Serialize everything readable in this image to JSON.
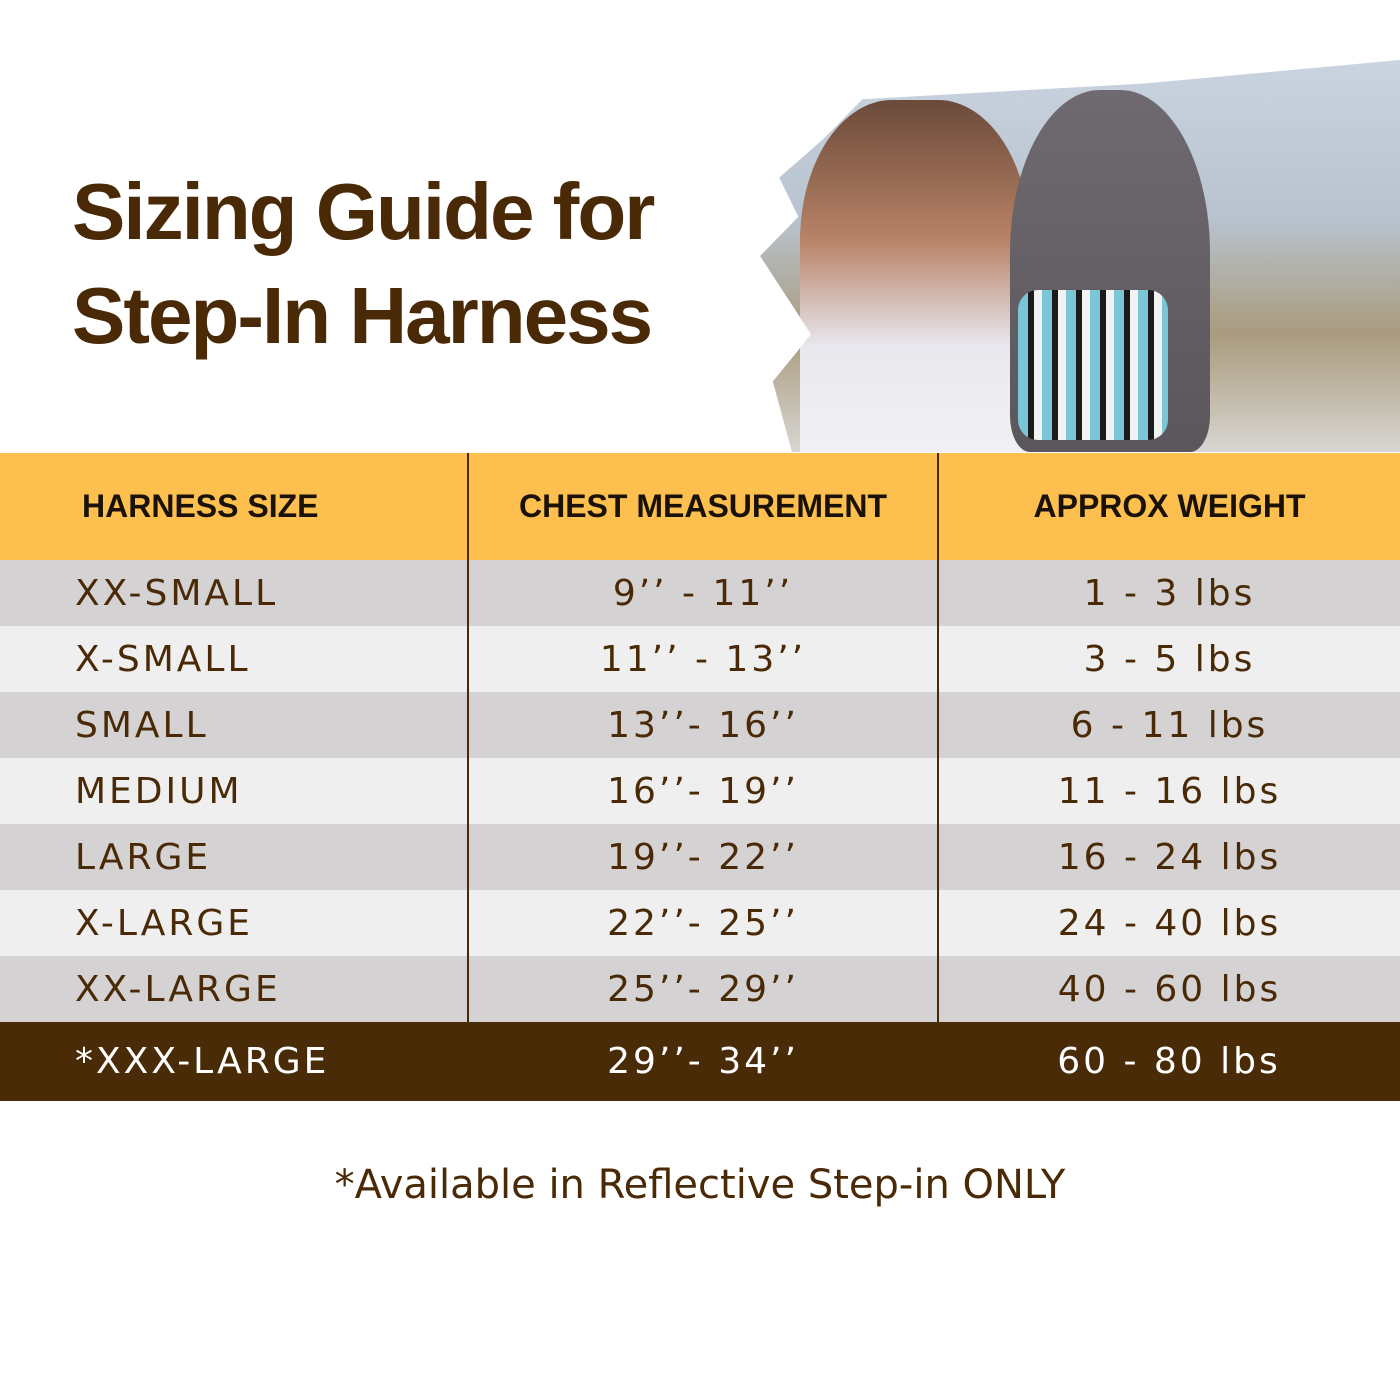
{
  "title": {
    "line1": "Sizing Guide for",
    "line2": "Step-In Harness"
  },
  "table": {
    "headers": [
      "HARNESS SIZE",
      "CHEST MEASUREMENT",
      "APPROX WEIGHT"
    ],
    "rows": [
      [
        "XX-SMALL",
        "9’’ -  11’’",
        "1 - 3 lbs"
      ],
      [
        "X-SMALL",
        "11’’ - 13’’",
        "3 - 5 lbs"
      ],
      [
        "SMALL",
        "13’’- 16’’",
        "6 - 11 lbs"
      ],
      [
        "MEDIUM",
        "16’’- 19’’",
        "11 - 16 lbs"
      ],
      [
        "LARGE",
        "19’’- 22’’",
        "16 - 24 lbs"
      ],
      [
        "X-LARGE",
        "22’’- 25’’",
        "24 - 40 lbs"
      ],
      [
        "XX-LARGE",
        "25’’- 29’’",
        "40 - 60 lbs"
      ],
      [
        "*XXX-LARGE",
        "29’’- 34’’",
        "60 - 80 lbs"
      ]
    ]
  },
  "footnote": "*Available in Reflective Step-in ONLY",
  "colors": {
    "header": "#fdbf4e",
    "brown": "#4a2a06",
    "highlight_row": "#4a2b07"
  }
}
